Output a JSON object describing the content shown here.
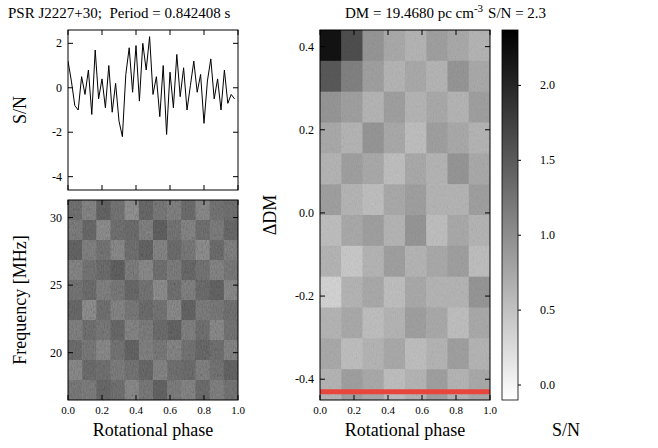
{
  "chart_data": [
    {
      "type": "line",
      "title": "PSR J2227+30;  Period = 0.842408 s",
      "y_label": "S/N",
      "color": "#000000",
      "x": [
        0.0,
        0.02,
        0.04,
        0.06,
        0.08,
        0.1,
        0.12,
        0.14,
        0.16,
        0.18,
        0.2,
        0.22,
        0.24,
        0.26,
        0.28,
        0.3,
        0.32,
        0.34,
        0.36,
        0.38,
        0.4,
        0.42,
        0.44,
        0.46,
        0.48,
        0.5,
        0.52,
        0.54,
        0.56,
        0.58,
        0.6,
        0.62,
        0.64,
        0.66,
        0.68,
        0.7,
        0.72,
        0.74,
        0.76,
        0.78,
        0.8,
        0.82,
        0.84,
        0.86,
        0.88,
        0.9,
        0.92,
        0.94,
        0.96,
        0.98
      ],
      "values": [
        1.2,
        0.3,
        -0.8,
        -1.0,
        0.5,
        -0.3,
        0.8,
        -1.2,
        1.7,
        -0.5,
        0.4,
        -0.9,
        1.0,
        -1.1,
        0.2,
        -1.5,
        -2.2,
        0.6,
        1.8,
        -0.2,
        1.9,
        -0.6,
        2.0,
        0.8,
        2.3,
        -0.3,
        0.5,
        -1.3,
        1.0,
        -2.1,
        0.7,
        -0.9,
        1.5,
        -0.4,
        0.9,
        -1.0,
        0.1,
        1.2,
        -0.2,
        0.6,
        -1.6,
        0.3,
        1.3,
        -0.5,
        0.4,
        -1.0,
        0.8,
        -0.7,
        -0.3,
        -0.5
      ],
      "xlim": [
        0,
        1
      ],
      "ylim": [
        -4.6,
        2.6
      ],
      "xticks": [
        0,
        0.2,
        0.4,
        0.6,
        0.8,
        1
      ],
      "yticks": [
        2,
        0,
        -2,
        -4
      ],
      "tick_labels": "y"
    },
    {
      "type": "heatmap",
      "y_label": "Frequency [MHz]",
      "x_label": "Rotational phase",
      "xlim": [
        0,
        1
      ],
      "ylim": [
        16.5,
        31.3
      ],
      "xticks": [
        {
          "value": 0,
          "label": "0.0"
        },
        0.2,
        0.4,
        0.6,
        0.8,
        {
          "value": 1,
          "label": "1.0"
        }
      ],
      "yticks": [
        20,
        25,
        30
      ],
      "zlim": [
        -3,
        3
      ],
      "cells": [
        [
          0.2,
          -0.3,
          0.5,
          0.1,
          -0.6,
          0.4,
          0.0,
          -0.2,
          0.3,
          -0.4,
          0.1,
          0.2
        ],
        [
          -0.1,
          0.4,
          -0.5,
          0.2,
          0.3,
          -0.2,
          0.6,
          0.1,
          -0.3,
          0.2,
          -0.1,
          0.4
        ],
        [
          0.5,
          -0.2,
          0.1,
          -0.4,
          0.2,
          0.5,
          -0.3,
          0.3,
          0.0,
          -0.5,
          0.3,
          -0.2
        ],
        [
          -0.3,
          0.1,
          0.3,
          0.6,
          -0.1,
          -0.4,
          0.2,
          -0.1,
          0.4,
          0.1,
          -0.3,
          0.0
        ],
        [
          0.1,
          0.3,
          -0.2,
          0.0,
          0.4,
          0.1,
          -0.5,
          0.2,
          -0.2,
          0.3,
          0.5,
          -0.4
        ],
        [
          0.4,
          -0.5,
          0.2,
          -0.3,
          0.0,
          0.3,
          0.1,
          -0.4,
          0.5,
          -0.1,
          0.0,
          0.2
        ],
        [
          -0.2,
          0.2,
          0.0,
          0.4,
          -0.3,
          -0.1,
          0.3,
          0.5,
          -0.2,
          0.2,
          -0.4,
          0.1
        ],
        [
          0.3,
          0.0,
          -0.4,
          0.1,
          0.5,
          -0.2,
          0.0,
          -0.3,
          0.1,
          0.4,
          0.2,
          -0.3
        ],
        [
          -0.4,
          0.3,
          0.2,
          -0.1,
          0.1,
          0.4,
          -0.3,
          0.2,
          0.3,
          -0.2,
          0.1,
          0.5
        ],
        [
          0.0,
          -0.1,
          0.4,
          0.2,
          -0.4,
          0.0,
          0.5,
          -0.1,
          -0.3,
          0.3,
          -0.2,
          0.1
        ]
      ]
    },
    {
      "type": "heatmap",
      "title": "DM = 19.4680 pc cm",
      "title_superscript": "-3",
      "subtitle": "S/N = 2.3",
      "y_label": "ΔDM",
      "x_label": "Rotational phase",
      "xlim": [
        0,
        1
      ],
      "ylim": [
        -0.45,
        0.44
      ],
      "xticks": [
        {
          "value": 0,
          "label": "0.0"
        },
        0.2,
        0.4,
        0.6,
        0.8,
        {
          "value": 1,
          "label": "1.0"
        }
      ],
      "yticks": [
        0.4,
        0.2,
        {
          "value": 0,
          "label": "0.0"
        },
        -0.2,
        -0.4
      ],
      "zlim": [
        -0.1,
        2.37
      ],
      "zticks": [
        {
          "value": 0,
          "label": "0.0"
        },
        0.5,
        {
          "value": 1,
          "label": "1.0"
        },
        1.5,
        {
          "value": 2,
          "label": "2.0"
        }
      ],
      "z_label": "S/N",
      "dm_marker": {
        "value": -0.43,
        "color": "#e8453c"
      },
      "cells": [
        [
          2.2,
          1.6,
          0.9,
          0.7,
          0.6,
          0.8,
          0.7,
          0.6
        ],
        [
          1.5,
          1.1,
          0.8,
          0.6,
          0.7,
          0.6,
          0.9,
          0.7
        ],
        [
          0.9,
          0.8,
          0.6,
          0.8,
          0.6,
          0.7,
          0.6,
          0.8
        ],
        [
          0.7,
          0.6,
          0.9,
          0.7,
          0.5,
          0.8,
          0.7,
          0.6
        ],
        [
          0.6,
          0.8,
          0.7,
          0.5,
          0.7,
          0.6,
          0.9,
          0.7
        ],
        [
          0.8,
          0.6,
          0.5,
          0.7,
          0.8,
          0.6,
          0.6,
          0.8
        ],
        [
          0.5,
          0.7,
          0.8,
          0.6,
          0.9,
          0.5,
          0.7,
          0.6
        ],
        [
          0.6,
          0.4,
          0.6,
          0.8,
          0.6,
          0.7,
          0.8,
          0.5
        ],
        [
          0.3,
          0.6,
          0.7,
          0.5,
          0.7,
          0.6,
          0.6,
          0.9
        ],
        [
          0.6,
          0.7,
          0.5,
          0.6,
          0.8,
          0.7,
          0.5,
          0.7
        ],
        [
          0.7,
          0.5,
          0.6,
          0.7,
          0.5,
          0.6,
          0.8,
          0.6
        ],
        [
          0.6,
          0.8,
          0.7,
          0.5,
          0.6,
          0.8,
          0.6,
          0.7
        ]
      ]
    }
  ]
}
